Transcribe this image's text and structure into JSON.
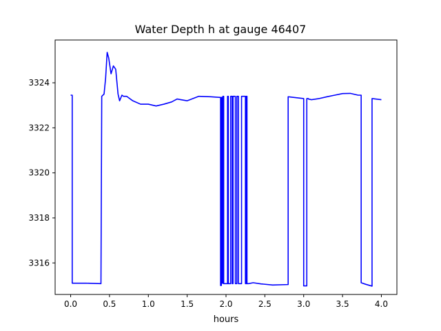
{
  "chart_data": {
    "type": "line",
    "title": "Water Depth h at gauge 46407",
    "xlabel": "hours",
    "ylabel": "",
    "xlim": [
      -0.2,
      4.2
    ],
    "ylim": [
      3314.6,
      3325.9
    ],
    "xticks": [
      0.0,
      0.5,
      1.0,
      1.5,
      2.0,
      2.5,
      3.0,
      3.5,
      4.0
    ],
    "xtick_labels": [
      "0.0",
      "0.5",
      "1.0",
      "1.5",
      "2.0",
      "2.5",
      "3.0",
      "3.5",
      "4.0"
    ],
    "yticks": [
      3316,
      3318,
      3320,
      3322,
      3324
    ],
    "ytick_labels": [
      "3316",
      "3318",
      "3320",
      "3322",
      "3324"
    ],
    "grid": false,
    "series": [
      {
        "color": "#0000ff",
        "x": [
          0.0,
          0.02,
          0.02,
          0.2,
          0.39,
          0.4,
          0.43,
          0.45,
          0.47,
          0.49,
          0.52,
          0.55,
          0.58,
          0.61,
          0.63,
          0.66,
          0.68,
          0.72,
          0.8,
          0.9,
          1.0,
          1.1,
          1.2,
          1.3,
          1.37,
          1.5,
          1.65,
          1.8,
          1.93,
          1.93,
          1.94,
          1.94,
          1.95,
          1.95,
          1.96,
          1.96,
          1.97,
          1.97,
          2.02,
          2.02,
          2.03,
          2.03,
          2.06,
          2.06,
          2.08,
          2.08,
          2.09,
          2.09,
          2.12,
          2.12,
          2.14,
          2.14,
          2.16,
          2.16,
          2.2,
          2.2,
          2.25,
          2.25,
          2.26,
          2.26,
          2.27,
          2.27,
          2.29,
          2.35,
          2.45,
          2.6,
          2.8,
          2.8,
          3.0,
          3.0,
          3.02,
          3.04,
          3.04,
          3.06,
          3.06,
          3.1,
          3.2,
          3.3,
          3.4,
          3.5,
          3.6,
          3.7,
          3.74,
          3.74,
          3.8,
          3.88,
          3.88,
          4.0
        ],
        "y": [
          3323.45,
          3323.45,
          3315.1,
          3315.1,
          3315.08,
          3323.4,
          3323.5,
          3324.2,
          3325.35,
          3325.1,
          3324.4,
          3324.75,
          3324.6,
          3323.5,
          3323.2,
          3323.45,
          3323.4,
          3323.4,
          3323.2,
          3323.05,
          3323.05,
          3322.97,
          3323.05,
          3323.15,
          3323.28,
          3323.2,
          3323.4,
          3323.38,
          3323.35,
          3315.0,
          3315.0,
          3323.35,
          3323.35,
          3315.1,
          3315.1,
          3323.4,
          3323.4,
          3315.08,
          3315.08,
          3323.4,
          3323.4,
          3315.08,
          3315.08,
          3323.4,
          3323.4,
          3315.08,
          3315.08,
          3323.4,
          3323.4,
          3315.08,
          3315.08,
          3323.4,
          3323.4,
          3315.08,
          3315.08,
          3323.4,
          3323.4,
          3315.08,
          3315.08,
          3323.4,
          3323.4,
          3315.08,
          3315.08,
          3315.12,
          3315.07,
          3315.02,
          3315.04,
          3323.38,
          3323.3,
          3314.98,
          3314.98,
          3314.98,
          3323.3,
          3323.3,
          3323.28,
          3323.25,
          3323.3,
          3323.38,
          3323.45,
          3323.52,
          3323.53,
          3323.45,
          3323.45,
          3315.12,
          3315.05,
          3314.97,
          3323.3,
          3323.25
        ]
      }
    ]
  }
}
